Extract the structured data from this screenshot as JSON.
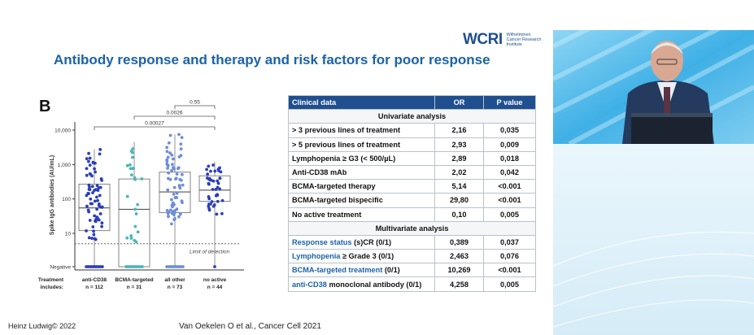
{
  "slide": {
    "title": "Antibody response and therapy and risk factors for poor response",
    "logo_mark": "WCRI",
    "logo_text": "Wilhelminen Cancer Research Institute",
    "panel_letter": "B",
    "footer_left": "Heinz Ludwig© 2022",
    "footer_citation": "Van Oekelen O et al., Cancer Cell 2021"
  },
  "plot": {
    "y_label": "Spike IgG antibodies (AU/mL)",
    "y_ticks": [
      "10,000",
      "1,000",
      "100",
      "10",
      "Negative"
    ],
    "limit_label": "Limit of detection",
    "treatment_label": "Treatment includes:",
    "comparisons": [
      "0.55",
      "0.0026",
      "0.00027"
    ]
  },
  "chart_data": {
    "type": "box",
    "ylabel": "Spike IgG antibodies (AU/mL)",
    "yscale": "log",
    "ylim": [
      1,
      10000
    ],
    "limit_of_detection": 5,
    "groups": [
      {
        "name": "anti-CD38",
        "n": "n = 112",
        "q1": 12,
        "median": 55,
        "q3": 270,
        "min": 1,
        "max": 2800,
        "color": "#2b3eb8"
      },
      {
        "name": "BCMA-targeted",
        "n": "n = 31",
        "q1": 1,
        "median": 50,
        "q3": 380,
        "min": 1,
        "max": 4500,
        "color": "#46b7b5"
      },
      {
        "name": "all other",
        "n": "n = 73",
        "q1": 40,
        "median": 160,
        "q3": 600,
        "min": 1,
        "max": 7500,
        "color": "#6e8ed8"
      },
      {
        "name": "no active",
        "n": "n = 44",
        "q1": 85,
        "median": 180,
        "q3": 470,
        "min": 1,
        "max": 1200,
        "color": "#2b3eb8"
      }
    ],
    "p_values": [
      {
        "pair": [
          "all other",
          "no active"
        ],
        "p": "0.55"
      },
      {
        "pair": [
          "BCMA-targeted",
          "no active"
        ],
        "p": "0.0026"
      },
      {
        "pair": [
          "anti-CD38",
          "no active"
        ],
        "p": "0.00027"
      }
    ]
  },
  "table": {
    "headers": [
      "Clinical data",
      "OR",
      "P value"
    ],
    "univariate_label": "Univariate analysis",
    "univariate_rows": [
      {
        "label": "> 3 previous lines of treatment",
        "or": "2,16",
        "p": "0,035"
      },
      {
        "label": "> 5 previous lines of treatment",
        "or": "2,93",
        "p": "0,009"
      },
      {
        "label": "Lymphopenia ≥ G3 (< 500/µL)",
        "or": "2,89",
        "p": "0,018"
      },
      {
        "label": "Anti-CD38 mAb",
        "or": "2,02",
        "p": "0,042"
      },
      {
        "label": "BCMA-targeted therapy",
        "or": "5,14",
        "p": "<0.001"
      },
      {
        "label": "BCMA-targeted bispecific",
        "or": "29,80",
        "p": "<0.001"
      },
      {
        "label": "No active treatment",
        "or": "0,10",
        "p": "0,005"
      }
    ],
    "multivariate_label": "Multivariate analysis",
    "multivariate_rows": [
      {
        "label_blue": "Response status",
        "label_rest": " (s)CR (0/1)",
        "or": "0,389",
        "p": "0,037"
      },
      {
        "label_blue": "Lymphopenia",
        "label_rest": " ≥ Grade 3 (0/1)",
        "or": "2,463",
        "p": "0,076"
      },
      {
        "label_blue": "BCMA-targeted treatment",
        "label_rest": " (0/1)",
        "or": "10,269",
        "p": "<0.001"
      },
      {
        "label_blue": "anti-CD38",
        "label_rest": " monoclonal antibody (0/1)",
        "or": "4,258",
        "p": "0,005"
      }
    ]
  },
  "video": {
    "colors": {
      "background": "#4fb9ea",
      "jacket": "#243a5e",
      "podium": "#1b2330"
    }
  }
}
